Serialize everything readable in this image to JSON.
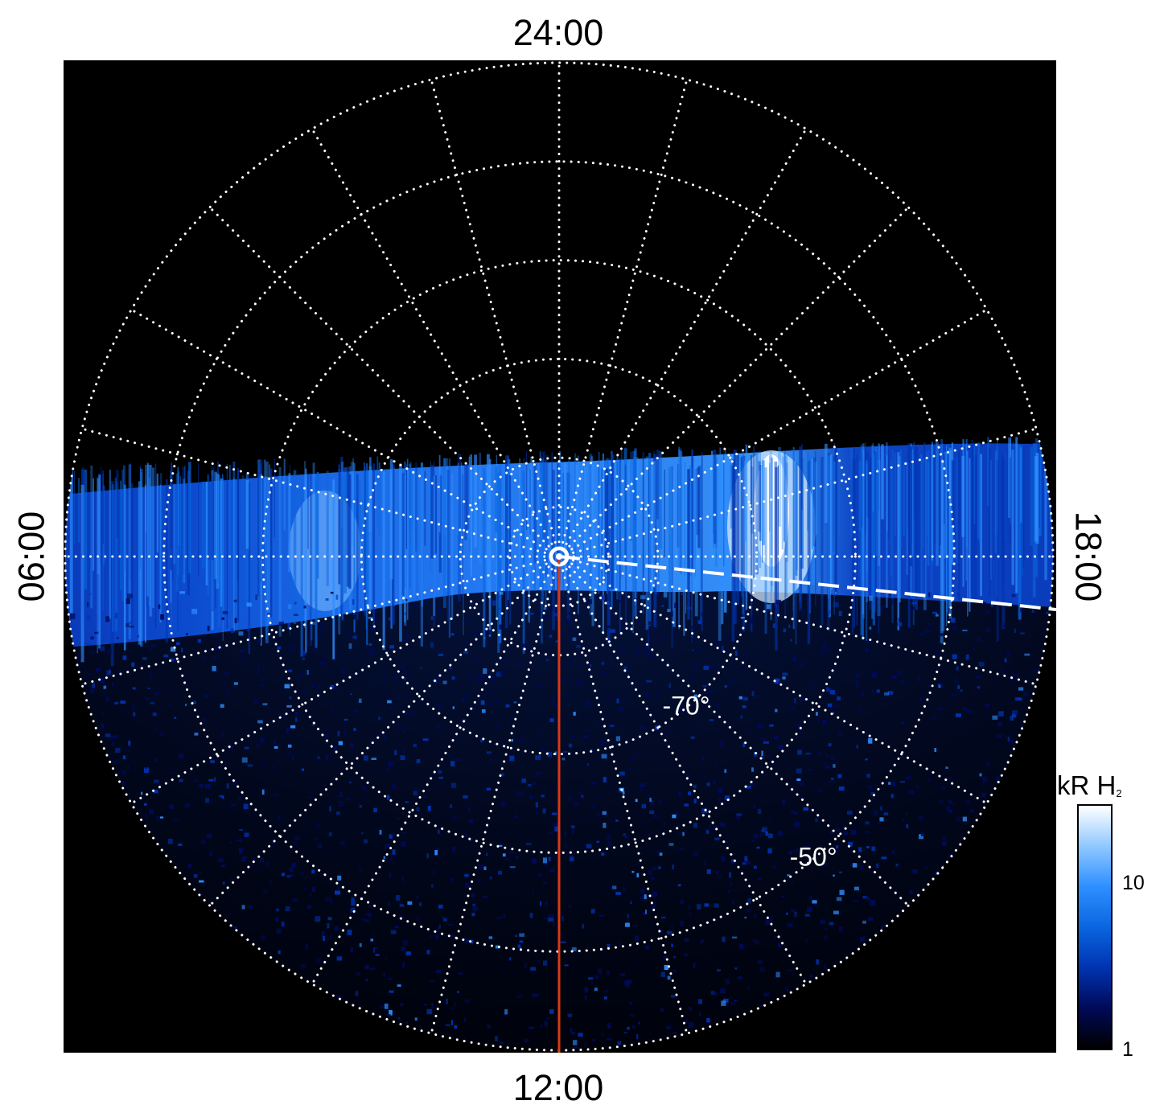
{
  "chart_data": {
    "type": "heatmap",
    "projection": "polar",
    "hemisphere": "south",
    "local_time_labels": {
      "top": "24:00",
      "bottom": "12:00",
      "left": "06:00",
      "right": "18:00"
    },
    "latitude_labels": [
      {
        "text": "-70°",
        "latitude": -70
      },
      {
        "text": "-50°",
        "latitude": -50
      }
    ],
    "latitude_circles": [
      -80,
      -70,
      -60,
      -50,
      -40
    ],
    "local_time_spokes_hours": 1,
    "grid": "on",
    "grid_style": "dotted white",
    "colorbar": {
      "title": "kR H",
      "title_subscript": "2",
      "scale": "log",
      "range": [
        1,
        30
      ],
      "ticks": [
        {
          "value": 1,
          "label": "1"
        },
        {
          "value": 10,
          "label": "10"
        }
      ],
      "colors": [
        "#000000",
        "#000a57",
        "#0033b0",
        "#0a66e0",
        "#2e8fff",
        "#8fc8ff",
        "#ffffff"
      ]
    },
    "features": {
      "auroral_band": "bright blue emission band across the dawn-dusk meridian",
      "brightest_region": "near 19-20 LT, approaching 30 kR",
      "noon_meridian_line_color": "#d83a16",
      "dashed_line": "white dashed line from the pole toward dusk"
    }
  },
  "colors": {
    "background": "#000000",
    "grid": "#ffffff",
    "meridian": "#d83a16",
    "band": "#1a6cf0",
    "peak": "#ffffff"
  }
}
